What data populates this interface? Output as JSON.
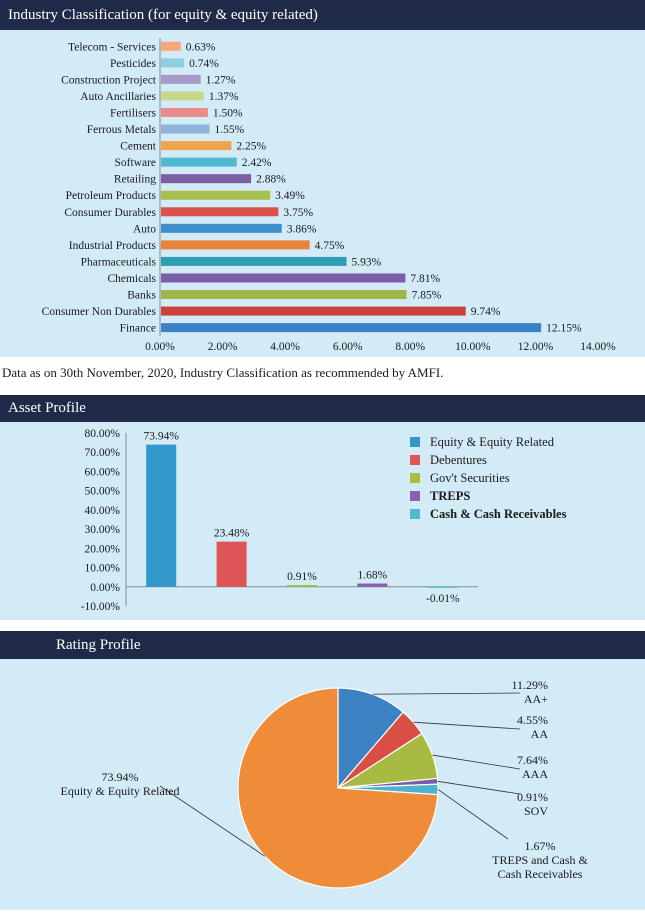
{
  "industry": {
    "header": "Industry Classification (for equity & equity related)",
    "note": "Data as on 30th November, 2020, Industry Classification as recommended by AMFI."
  },
  "asset": {
    "header": "Asset Profile"
  },
  "rating": {
    "header": "Rating Profile"
  },
  "chart_data": [
    {
      "type": "bar",
      "orientation": "horizontal",
      "categories": [
        "Telecom - Services",
        "Pesticides",
        "Construction Project",
        "Auto Ancillaries",
        "Fertilisers",
        "Ferrous Metals",
        "Cement",
        "Software",
        "Retailing",
        "Petroleum Products",
        "Consumer Durables",
        "Auto",
        "Industrial Products",
        "Pharmaceuticals",
        "Chemicals",
        "Banks",
        "Consumer Non Durables",
        "Finance"
      ],
      "values": [
        0.63,
        0.74,
        1.27,
        1.37,
        1.5,
        1.55,
        2.25,
        2.42,
        2.88,
        3.49,
        3.75,
        3.86,
        4.75,
        5.93,
        7.81,
        7.85,
        9.74,
        12.15
      ],
      "value_labels": [
        "0.63%",
        "0.74%",
        "1.27%",
        "1.37%",
        "1.50%",
        "1.55%",
        "2.25%",
        "2.42%",
        "2.88%",
        "3.49%",
        "3.75%",
        "3.86%",
        "4.75%",
        "5.93%",
        "7.81%",
        "7.85%",
        "9.74%",
        "12.15%"
      ],
      "colors": [
        "#f7a878",
        "#8dcfe0",
        "#a99bc9",
        "#c6d98a",
        "#e98c8c",
        "#8fb3dc",
        "#f0a24c",
        "#4fb9cf",
        "#7a5fa3",
        "#a6bf4f",
        "#d9524e",
        "#3d8fcc",
        "#e8823c",
        "#2e9fb3",
        "#7b5ea8",
        "#9fb548",
        "#cc3f3a",
        "#3b82c4"
      ],
      "xlim": [
        0,
        14
      ],
      "x_ticks": [
        "0.00%",
        "2.00%",
        "4.00%",
        "6.00%",
        "8.00%",
        "10.00%",
        "12.00%",
        "14.00%"
      ],
      "grid": false
    },
    {
      "type": "bar",
      "categories": [
        "Equity & Equity Related",
        "Debentures",
        "Gov't Securities",
        "TREPS",
        "Cash & Cash Receivables"
      ],
      "values": [
        73.94,
        23.48,
        0.91,
        1.68,
        -0.01
      ],
      "value_labels": [
        "73.94%",
        "23.48%",
        "0.91%",
        "1.68%",
        "-0.01%"
      ],
      "colors": [
        "#3399cc",
        "#dd5555",
        "#a6bf3c",
        "#8b5fb0",
        "#4fb9cf"
      ],
      "legend": [
        "Equity & Equity Related",
        "Debentures",
        "Gov't Securities",
        "TREPS",
        "Cash & Cash Receivables"
      ],
      "legend_position": "right",
      "ylim": [
        -10,
        80
      ],
      "y_ticks": [
        "80.00%",
        "70.00%",
        "60.00%",
        "50.00%",
        "40.00%",
        "30.00%",
        "20.00%",
        "10.00%",
        "0.00%",
        "-10.00%"
      ],
      "grid": false
    },
    {
      "type": "pie",
      "slices": [
        {
          "name": "AA+",
          "value": 11.29,
          "label": "11.29%",
          "color": "#3c82c2"
        },
        {
          "name": "AA",
          "value": 4.55,
          "label": "4.55%",
          "color": "#d94f46"
        },
        {
          "name": "AAA",
          "value": 7.64,
          "label": "7.64%",
          "color": "#a7bb43"
        },
        {
          "name": "SOV",
          "value": 0.91,
          "label": "0.91%",
          "color": "#7a59a8"
        },
        {
          "name": "TREPS and Cash & Cash Receivables",
          "value": 1.67,
          "label": "1.67%",
          "color": "#4db3cc"
        },
        {
          "name": "Equity & Equity Related",
          "value": 73.94,
          "label": "73.94%",
          "color": "#ee8c3a"
        }
      ]
    }
  ]
}
